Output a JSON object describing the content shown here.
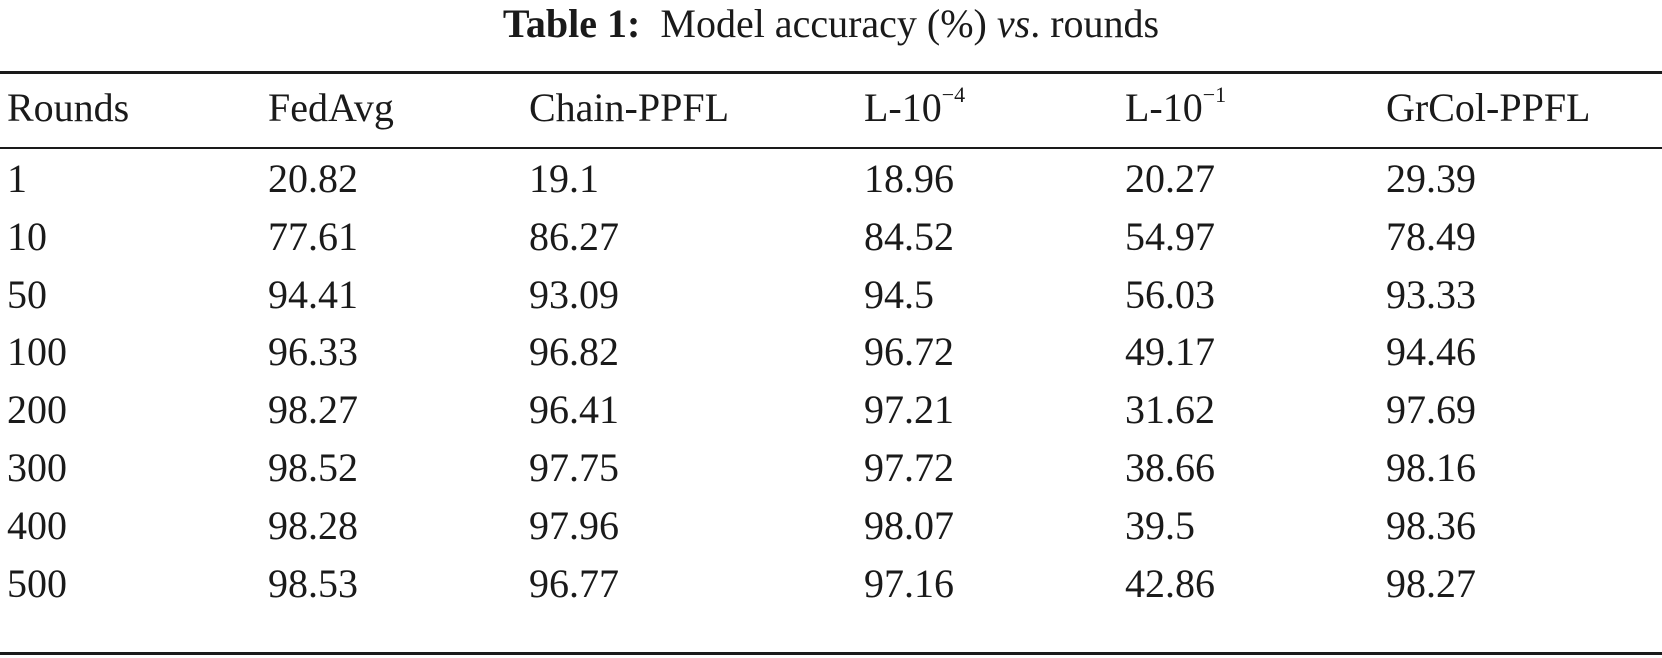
{
  "caption": {
    "label": "Table 1:",
    "text_before": "Model accuracy (%)",
    "vs": "vs",
    "text_after": ". rounds"
  },
  "table": {
    "headers": [
      {
        "base": "Rounds",
        "sup": ""
      },
      {
        "base": "FedAvg",
        "sup": ""
      },
      {
        "base": "Chain-PPFL",
        "sup": ""
      },
      {
        "base": "L-10",
        "sup": "−4"
      },
      {
        "base": "L-10",
        "sup": "−1"
      },
      {
        "base": "GrCol-PPFL",
        "sup": ""
      }
    ],
    "rows": [
      [
        "1",
        "20.82",
        "19.1",
        "18.96",
        "20.27",
        "29.39"
      ],
      [
        "10",
        "77.61",
        "86.27",
        "84.52",
        "54.97",
        "78.49"
      ],
      [
        "50",
        "94.41",
        "93.09",
        "94.5",
        "56.03",
        "93.33"
      ],
      [
        "100",
        "96.33",
        "96.82",
        "96.72",
        "49.17",
        "94.46"
      ],
      [
        "200",
        "98.27",
        "96.41",
        "97.21",
        "31.62",
        "97.69"
      ],
      [
        "300",
        "98.52",
        "97.75",
        "97.72",
        "38.66",
        "98.16"
      ],
      [
        "400",
        "98.28",
        "97.96",
        "98.07",
        "39.5",
        "98.36"
      ],
      [
        "500",
        "98.53",
        "96.77",
        "97.16",
        "42.86",
        "98.27"
      ]
    ]
  }
}
